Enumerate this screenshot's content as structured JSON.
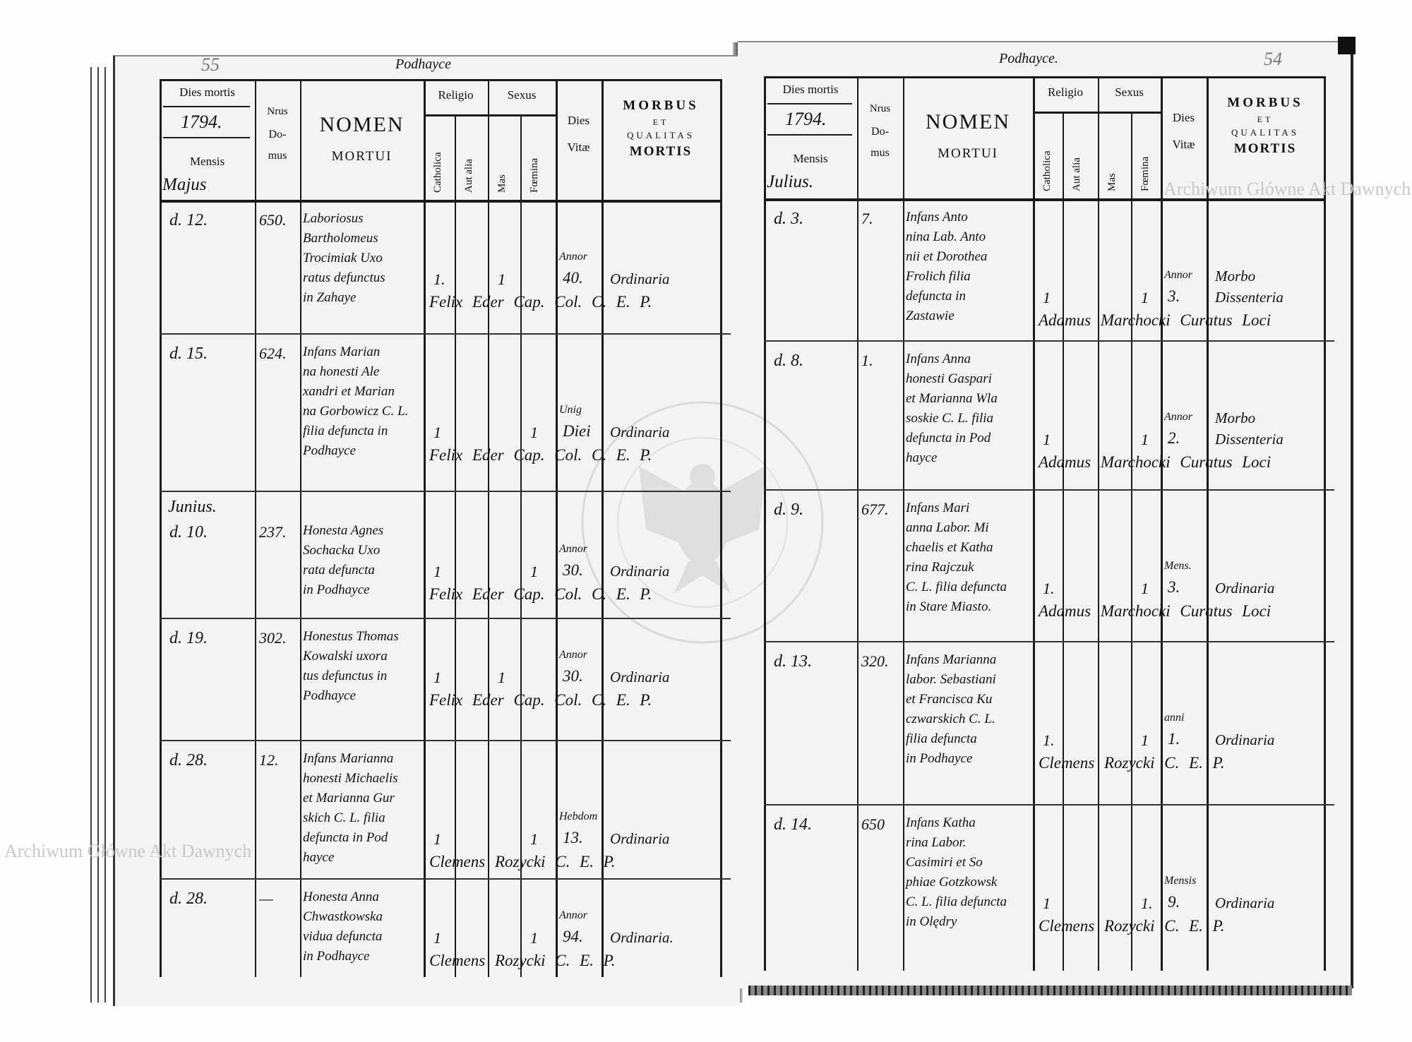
{
  "left_page": {
    "folio": "55",
    "place_heading": "Podhayce",
    "header": {
      "dies_mortis": "Dies mortis",
      "year": "1794.",
      "mensis": "Mensis",
      "month": "Majus",
      "nrus": "Nrus",
      "domus_1": "Do-",
      "domus_2": "mus",
      "nomen": "NOMEN",
      "mortui": "MORTUI",
      "religio": "Religio",
      "sexus": "Sexus",
      "catholica": "Catholica",
      "aut_alia": "Aut alia",
      "mas": "Mas",
      "foemina": "Fœmina",
      "dies": "Dies",
      "vitae": "Vitæ",
      "morbus": "MORBUS",
      "et": "ET",
      "qualitas": "QUALITAS",
      "mortis": "MORTIS"
    },
    "entries": [
      {
        "month": "",
        "day": "d. 12.",
        "house": "650.",
        "name": [
          "Laboriosus",
          "Bartholomeus",
          "Trocimiak Uxo",
          "ratus defunctus",
          "in Zahaye"
        ],
        "catholica": "1.",
        "mas": "1",
        "foemina": "",
        "vitae_unit": "Annor",
        "vitae": "40.",
        "morbus": [
          "Ordinaria"
        ],
        "signature": "Felix Eder Cap. Col. C. E. P."
      },
      {
        "month": "",
        "day": "d. 15.",
        "house": "624.",
        "name": [
          "Infans Marian",
          "na honesti Ale",
          "xandri et Marian",
          "na Gorbowicz C. L.",
          "filia defuncta in",
          "Podhayce"
        ],
        "catholica": "1",
        "mas": "",
        "foemina": "1",
        "vitae_unit": "Unig",
        "vitae": "Diei",
        "morbus": [
          "Ordinaria"
        ],
        "signature": "Felix Eder Cap. Col. C. E. P."
      },
      {
        "month": "Junius.",
        "day": "d. 10.",
        "house": "237.",
        "name": [
          "Honesta Agnes",
          "Sochacka Uxo",
          "rata defuncta",
          "in Podhayce"
        ],
        "catholica": "1",
        "mas": "",
        "foemina": "1",
        "vitae_unit": "Annor",
        "vitae": "30.",
        "morbus": [
          "Ordinaria"
        ],
        "signature": "Felix Eder Cap. Col. C. E. P."
      },
      {
        "month": "",
        "day": "d. 19.",
        "house": "302.",
        "name": [
          "Honestus Thomas",
          "Kowalski uxora",
          "tus defunctus in",
          "Podhayce"
        ],
        "catholica": "1",
        "mas": "1",
        "foemina": "",
        "vitae_unit": "Annor",
        "vitae": "30.",
        "morbus": [
          "Ordinaria"
        ],
        "signature": "Felix Eder Cap. Col. C. E. P."
      },
      {
        "month": "",
        "day": "d. 28.",
        "house": "12.",
        "name": [
          "Infans Marianna",
          "honesti Michaelis",
          "et Marianna Gur",
          "skich C. L. filia",
          "defuncta in Pod",
          "hayce"
        ],
        "catholica": "1",
        "mas": "",
        "foemina": "1",
        "vitae_unit": "Hebdom",
        "vitae": "13.",
        "morbus": [
          "Ordinaria"
        ],
        "signature": "Clemens Rozycki C. E. P."
      },
      {
        "month": "",
        "day": "d. 28.",
        "house": "—",
        "name": [
          "Honesta Anna",
          "Chwastkowska",
          "vidua defuncta",
          "in Podhayce"
        ],
        "catholica": "1",
        "mas": "",
        "foemina": "1",
        "vitae_unit": "Annor",
        "vitae": "94.",
        "morbus": [
          "Ordinaria."
        ],
        "signature": "Clemens Rozycki C. E. P."
      }
    ]
  },
  "right_page": {
    "folio": "54",
    "place_heading": "Podhayce.",
    "header": {
      "dies_mortis": "Dies mortis",
      "year": "1794.",
      "mensis": "Mensis",
      "month": "Julius.",
      "nrus": "Nrus",
      "domus_1": "Do-",
      "domus_2": "mus",
      "nomen": "NOMEN",
      "mortui": "MORTUI",
      "religio": "Religio",
      "sexus": "Sexus",
      "catholica": "Catholica",
      "aut_alia": "Aut alia",
      "mas": "Mas",
      "foemina": "Fœmina",
      "dies": "Dies",
      "vitae": "Vitæ",
      "morbus": "MORBUS",
      "et": "ET",
      "qualitas": "QUALITAS",
      "mortis": "MORTIS"
    },
    "entries": [
      {
        "month": "",
        "day": "d. 3.",
        "house": "7.",
        "name": [
          "Infans Anto",
          "nina Lab. Anto",
          "nii et Dorothea",
          "Frolich filia",
          "defuncta in",
          "Zastawie"
        ],
        "catholica": "1",
        "mas": "",
        "foemina": "1",
        "vitae_unit": "Annor",
        "vitae": "3.",
        "morbus": [
          "Morbo",
          "Dissenteria"
        ],
        "signature": "Adamus Marchocki Curatus Loci"
      },
      {
        "month": "",
        "day": "d. 8.",
        "house": "1.",
        "name": [
          "Infans Anna",
          "honesti Gaspari",
          "et Marianna Wla",
          "soskie C. L. filia",
          "defuncta in Pod",
          "hayce"
        ],
        "catholica": "1",
        "mas": "",
        "foemina": "1",
        "vitae_unit": "Annor",
        "vitae": "2.",
        "morbus": [
          "Morbo",
          "Dissenteria"
        ],
        "signature": "Adamus Marchocki Curatus Loci"
      },
      {
        "month": "",
        "day": "d. 9.",
        "house": "677.",
        "name": [
          "Infans Mari",
          "anna Labor. Mi",
          "chaelis et Katha",
          "rina Rajczuk",
          "C. L. filia defuncta",
          "in Stare Miasto."
        ],
        "catholica": "1.",
        "mas": "",
        "foemina": "1",
        "vitae_unit": "Mens.",
        "vitae": "3.",
        "morbus": [
          "Ordinaria"
        ],
        "signature": "Adamus Marchocki Curatus Loci"
      },
      {
        "month": "",
        "day": "d. 13.",
        "house": "320.",
        "name": [
          "Infans Marianna",
          "labor. Sebastiani",
          "et Francisca Ku",
          "czwarskich C. L.",
          "filia defuncta",
          "in Podhayce"
        ],
        "catholica": "1.",
        "mas": "",
        "foemina": "1",
        "vitae_unit": "anni",
        "vitae": "1.",
        "morbus": [
          "Ordinaria"
        ],
        "signature": "Clemens Rozycki C. E. P."
      },
      {
        "month": "",
        "day": "d. 14.",
        "house": "650",
        "name": [
          "Infans Katha",
          "rina Labor.",
          "Casimiri et So",
          "phiae Gotzkowsk",
          "C. L. filia defuncta",
          "in Olędry"
        ],
        "catholica": "1",
        "mas": "",
        "foemina": "1.",
        "vitae_unit": "Mensis",
        "vitae": "9.",
        "morbus": [
          "Ordinaria"
        ],
        "signature": "Clemens Rozycki C. E. P."
      }
    ]
  },
  "watermarks": {
    "stamp_text": "ARCHIWUM GŁÓWNE · AKT DAWNYCH",
    "text_right": "Archiwum Główne Akt Dawnych",
    "text_left": "Archiwum Główne Akt Dawnych"
  }
}
